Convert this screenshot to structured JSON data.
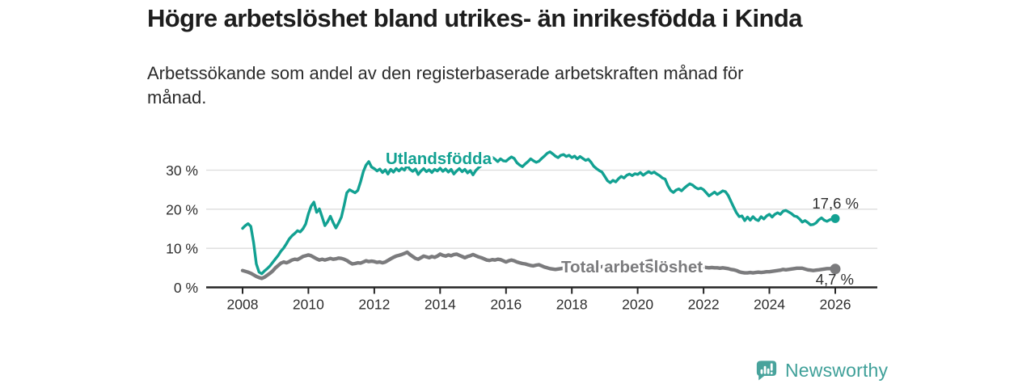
{
  "header": {
    "title": "Högre arbetslöshet bland utrikes- än inrikesfödda i Kinda",
    "subtitle_line1": "Arbetssökande som andel av den registerbaserade arbetskraften månad för",
    "subtitle_line2": "månad."
  },
  "chart_data": {
    "type": "line",
    "title": "Högre arbetslöshet bland utrikes- än inrikesfödda i Kinda",
    "xlabel": "",
    "ylabel": "Arbetssökande som andel av den registerbaserade arbetskraften (%)",
    "grid": "horizontal",
    "legend_position": "inline-labels",
    "x_start_year": 2008,
    "points_per_year": 12,
    "x_ticks": [
      2008,
      2010,
      2012,
      2014,
      2016,
      2018,
      2020,
      2022,
      2024,
      2026
    ],
    "x_tick_labels": [
      "2008",
      "2010",
      "2012",
      "2014",
      "2016",
      "2018",
      "2020",
      "2022",
      "2024",
      "2026"
    ],
    "y_ticks": [
      0,
      10,
      20,
      30
    ],
    "y_tick_labels": [
      "0 %",
      "10 %",
      "20 %",
      "30 %"
    ],
    "ylim": [
      0,
      35.5
    ],
    "series": [
      {
        "name": "Utlandsfödda",
        "color": "#12a192",
        "end_label": "17,6 %",
        "end_value": 17.6,
        "values": [
          15.1,
          15.8,
          16.3,
          15.6,
          11.5,
          6.0,
          3.9,
          3.5,
          4.2,
          4.8,
          5.5,
          6.4,
          7.3,
          8.2,
          9.3,
          10.1,
          11.2,
          12.4,
          13.2,
          13.8,
          14.5,
          14.2,
          15.0,
          16.2,
          18.8,
          20.8,
          21.8,
          19.2,
          20.1,
          18.0,
          15.8,
          16.8,
          18.2,
          16.6,
          15.2,
          16.5,
          18.0,
          21.0,
          24.2,
          25.0,
          24.6,
          24.2,
          24.8,
          27.0,
          29.6,
          31.3,
          32.2,
          30.8,
          30.4,
          29.8,
          30.3,
          29.4,
          30.1,
          29.0,
          30.2,
          29.5,
          30.4,
          29.8,
          30.5,
          30.0,
          31.2,
          30.2,
          29.7,
          30.3,
          28.9,
          29.8,
          30.4,
          29.6,
          30.1,
          29.4,
          30.2,
          29.8,
          30.5,
          29.7,
          30.3,
          29.5,
          30.2,
          29.0,
          29.8,
          30.4,
          29.6,
          30.2,
          29.3,
          29.9,
          28.8,
          29.9,
          30.6,
          31.2,
          32.3,
          33.1,
          32.5,
          33.3,
          32.8,
          32.2,
          32.9,
          32.4,
          32.3,
          32.9,
          33.4,
          33.0,
          31.9,
          31.3,
          30.9,
          31.6,
          32.2,
          32.9,
          32.4,
          32.0,
          32.3,
          33.0,
          33.6,
          34.3,
          34.7,
          34.2,
          33.6,
          33.2,
          33.8,
          34.0,
          33.5,
          33.8,
          33.2,
          33.6,
          32.9,
          33.5,
          33.0,
          32.5,
          32.8,
          32.0,
          31.0,
          30.4,
          29.9,
          29.5,
          28.4,
          27.3,
          26.8,
          27.4,
          27.0,
          27.8,
          28.4,
          28.0,
          28.7,
          29.0,
          28.6,
          29.1,
          28.9,
          29.4,
          28.7,
          29.2,
          29.6,
          29.2,
          29.5,
          29.0,
          28.6,
          28.0,
          27.7,
          26.0,
          24.8,
          24.3,
          24.9,
          25.2,
          24.7,
          25.4,
          26.0,
          26.5,
          26.2,
          25.6,
          25.2,
          25.4,
          25.0,
          24.2,
          23.4,
          23.9,
          24.4,
          23.8,
          24.2,
          24.7,
          24.5,
          23.5,
          22.0,
          20.5,
          19.1,
          18.1,
          18.3,
          17.1,
          18.0,
          17.2,
          18.1,
          17.4,
          17.1,
          18.1,
          17.5,
          18.3,
          18.7,
          18.0,
          18.7,
          19.1,
          18.7,
          19.5,
          19.7,
          19.3,
          18.9,
          18.3,
          18.1,
          17.5,
          16.7,
          17.1,
          16.6,
          16.0,
          16.1,
          16.5,
          17.3,
          17.8,
          17.2,
          16.9,
          17.3,
          17.5,
          17.6
        ]
      },
      {
        "name": "Total arbetslöshet",
        "color": "#7b7b7d",
        "end_label": "4,7 %",
        "end_value": 4.7,
        "values": [
          4.3,
          4.1,
          3.9,
          3.6,
          3.2,
          2.8,
          2.5,
          2.3,
          2.6,
          3.1,
          3.6,
          4.2,
          5.0,
          5.6,
          6.2,
          6.5,
          6.3,
          6.6,
          7.0,
          7.2,
          7.1,
          7.5,
          7.9,
          8.1,
          8.3,
          8.1,
          7.7,
          7.3,
          7.0,
          7.2,
          7.0,
          7.2,
          7.4,
          7.2,
          7.3,
          7.5,
          7.4,
          7.2,
          6.9,
          6.4,
          6.0,
          6.1,
          6.3,
          6.2,
          6.5,
          6.8,
          6.6,
          6.7,
          6.6,
          6.4,
          6.5,
          6.3,
          6.5,
          6.9,
          7.3,
          7.7,
          8.0,
          8.2,
          8.4,
          8.7,
          9.0,
          8.4,
          7.9,
          7.4,
          7.2,
          7.6,
          8.0,
          7.8,
          7.6,
          7.9,
          7.7,
          8.0,
          8.5,
          8.2,
          8.0,
          8.3,
          8.1,
          8.4,
          8.5,
          8.2,
          7.9,
          7.6,
          7.9,
          8.1,
          8.4,
          8.1,
          7.8,
          7.6,
          7.3,
          7.0,
          6.9,
          7.1,
          7.0,
          7.2,
          7.1,
          6.8,
          6.5,
          6.8,
          7.0,
          6.8,
          6.5,
          6.3,
          6.1,
          6.0,
          5.8,
          5.6,
          5.5,
          5.7,
          5.8,
          5.5,
          5.2,
          5.0,
          4.8,
          4.7,
          4.6,
          4.7,
          4.8,
          4.9,
          5.0,
          5.1,
          5.0,
          5.1,
          5.2,
          5.1,
          5.0,
          4.9,
          5.0,
          5.1,
          5.2,
          5.3,
          5.2,
          5.3,
          5.4,
          5.3,
          5.4,
          5.5,
          5.4,
          5.5,
          5.6,
          5.5,
          5.6,
          5.7,
          5.6,
          5.7,
          5.8,
          5.9,
          6.2,
          6.5,
          6.7,
          6.8,
          6.7,
          6.6,
          6.4,
          6.2,
          6.0,
          5.9,
          5.8,
          5.7,
          5.6,
          5.5,
          5.4,
          5.3,
          5.2,
          5.1,
          5.2,
          5.1,
          5.0,
          5.1,
          5.2,
          5.1,
          5.0,
          5.1,
          5.0,
          5.0,
          4.9,
          5.0,
          4.9,
          4.8,
          4.6,
          4.5,
          4.3,
          4.0,
          3.8,
          3.7,
          3.7,
          3.8,
          3.7,
          3.8,
          3.9,
          3.8,
          3.9,
          4.0,
          4.0,
          4.1,
          4.2,
          4.3,
          4.4,
          4.6,
          4.5,
          4.6,
          4.7,
          4.8,
          4.9,
          4.9,
          4.9,
          4.7,
          4.5,
          4.4,
          4.3,
          4.4,
          4.5,
          4.6,
          4.7,
          4.8,
          4.8,
          4.8,
          4.7
        ]
      }
    ]
  },
  "footer": {
    "brand": "Newsworthy",
    "brand_color": "#3fa099",
    "logo_color": "#48a39c"
  }
}
